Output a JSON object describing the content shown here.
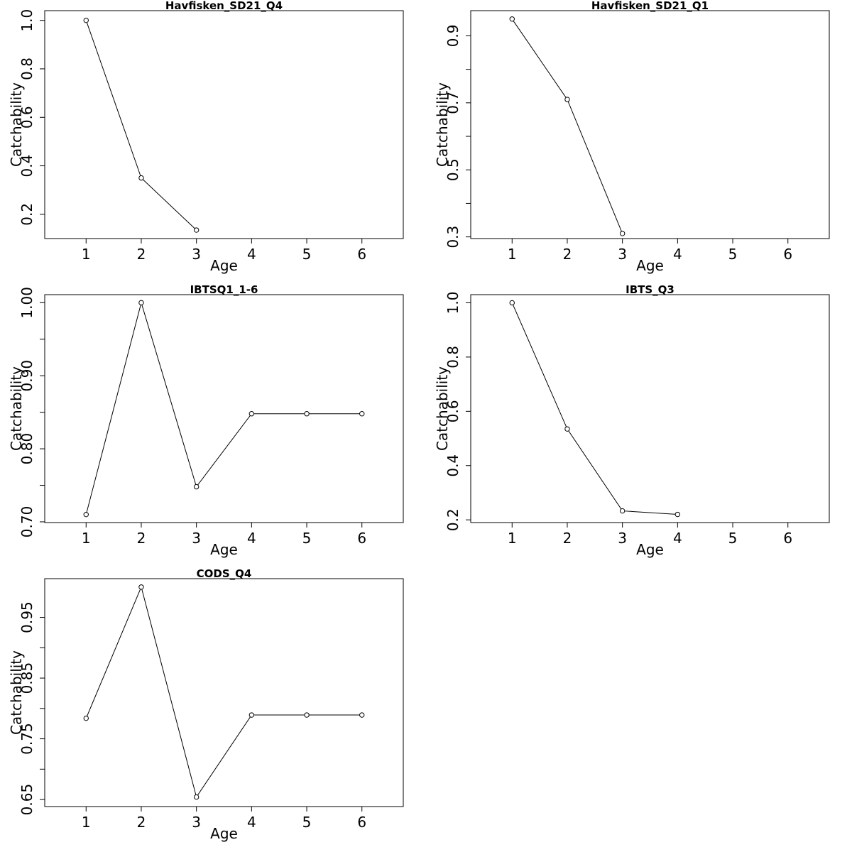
{
  "chart_data": [
    {
      "type": "line",
      "title": "Havfisken_SD21_Q4",
      "xlabel": "Age",
      "ylabel": "Catchability",
      "x": [
        1,
        2,
        3
      ],
      "y": [
        1.0,
        0.35,
        0.135
      ],
      "xlim": [
        0.25,
        6.75
      ],
      "ylim": [
        0.1,
        1.04
      ],
      "xticks": [
        1,
        2,
        3,
        4,
        5,
        6
      ],
      "yticks": [
        0.2,
        0.4,
        0.6,
        0.8,
        1.0
      ],
      "ytick_labels": [
        "0.2",
        "0.4",
        "0.6",
        "0.8",
        "1.0"
      ],
      "yminor_ticks": [],
      "grid": false
    },
    {
      "type": "line",
      "title": "Havfisken_SD21_Q1",
      "xlabel": "Age",
      "ylabel": "Catchability",
      "x": [
        1,
        2,
        3
      ],
      "y": [
        0.95,
        0.71,
        0.31
      ],
      "xlim": [
        0.25,
        6.75
      ],
      "ylim": [
        0.295,
        0.975
      ],
      "xticks": [
        1,
        2,
        3,
        4,
        5,
        6
      ],
      "yticks": [
        0.3,
        0.5,
        0.7,
        0.9
      ],
      "ytick_labels": [
        "0.3",
        "0.5",
        "0.7",
        "0.9"
      ],
      "yminor_ticks": [
        0.4,
        0.6,
        0.8
      ],
      "grid": false
    },
    {
      "type": "line",
      "title": "IBTSQ1_1-6",
      "xlabel": "Age",
      "ylabel": "Catchability",
      "x": [
        1,
        2,
        3,
        4,
        5,
        6
      ],
      "y": [
        0.71,
        1.0,
        0.748,
        0.848,
        0.848,
        0.848
      ],
      "xlim": [
        0.25,
        6.75
      ],
      "ylim": [
        0.699,
        1.011
      ],
      "xticks": [
        1,
        2,
        3,
        4,
        5,
        6
      ],
      "yticks": [
        0.7,
        0.8,
        0.9,
        1.0
      ],
      "ytick_labels": [
        "0.70",
        "0.80",
        "0.90",
        "1.00"
      ],
      "yminor_ticks": [
        0.75,
        0.85,
        0.95
      ],
      "grid": false
    },
    {
      "type": "line",
      "title": "IBTS_Q3",
      "xlabel": "Age",
      "ylabel": "Catchability",
      "x": [
        1,
        2,
        3,
        4
      ],
      "y": [
        1.0,
        0.535,
        0.233,
        0.22
      ],
      "xlim": [
        0.25,
        6.75
      ],
      "ylim": [
        0.19,
        1.03
      ],
      "xticks": [
        1,
        2,
        3,
        4,
        5,
        6
      ],
      "yticks": [
        0.2,
        0.4,
        0.6,
        0.8,
        1.0
      ],
      "ytick_labels": [
        "0.2",
        "0.4",
        "0.6",
        "0.8",
        "1.0"
      ],
      "yminor_ticks": [],
      "grid": false
    },
    {
      "type": "line",
      "title": "CODS_Q4",
      "xlabel": "Age",
      "ylabel": "Catchability",
      "x": [
        1,
        2,
        3,
        4,
        5,
        6
      ],
      "y": [
        0.7838,
        1.0,
        0.6541,
        0.7892,
        0.7892,
        0.7892
      ],
      "xlim": [
        0.25,
        6.75
      ],
      "ylim": [
        0.6384,
        1.0138
      ],
      "xticks": [
        1,
        2,
        3,
        4,
        5,
        6
      ],
      "yticks": [
        0.65,
        0.75,
        0.85,
        0.95
      ],
      "ytick_labels": [
        "0.65",
        "0.75",
        "0.85",
        "0.95"
      ],
      "yminor_ticks": [
        0.7,
        0.8,
        0.9
      ],
      "grid": false
    }
  ],
  "colors": {
    "line": "#000000",
    "marker_fill": "#ffffff",
    "background": "#ffffff"
  }
}
